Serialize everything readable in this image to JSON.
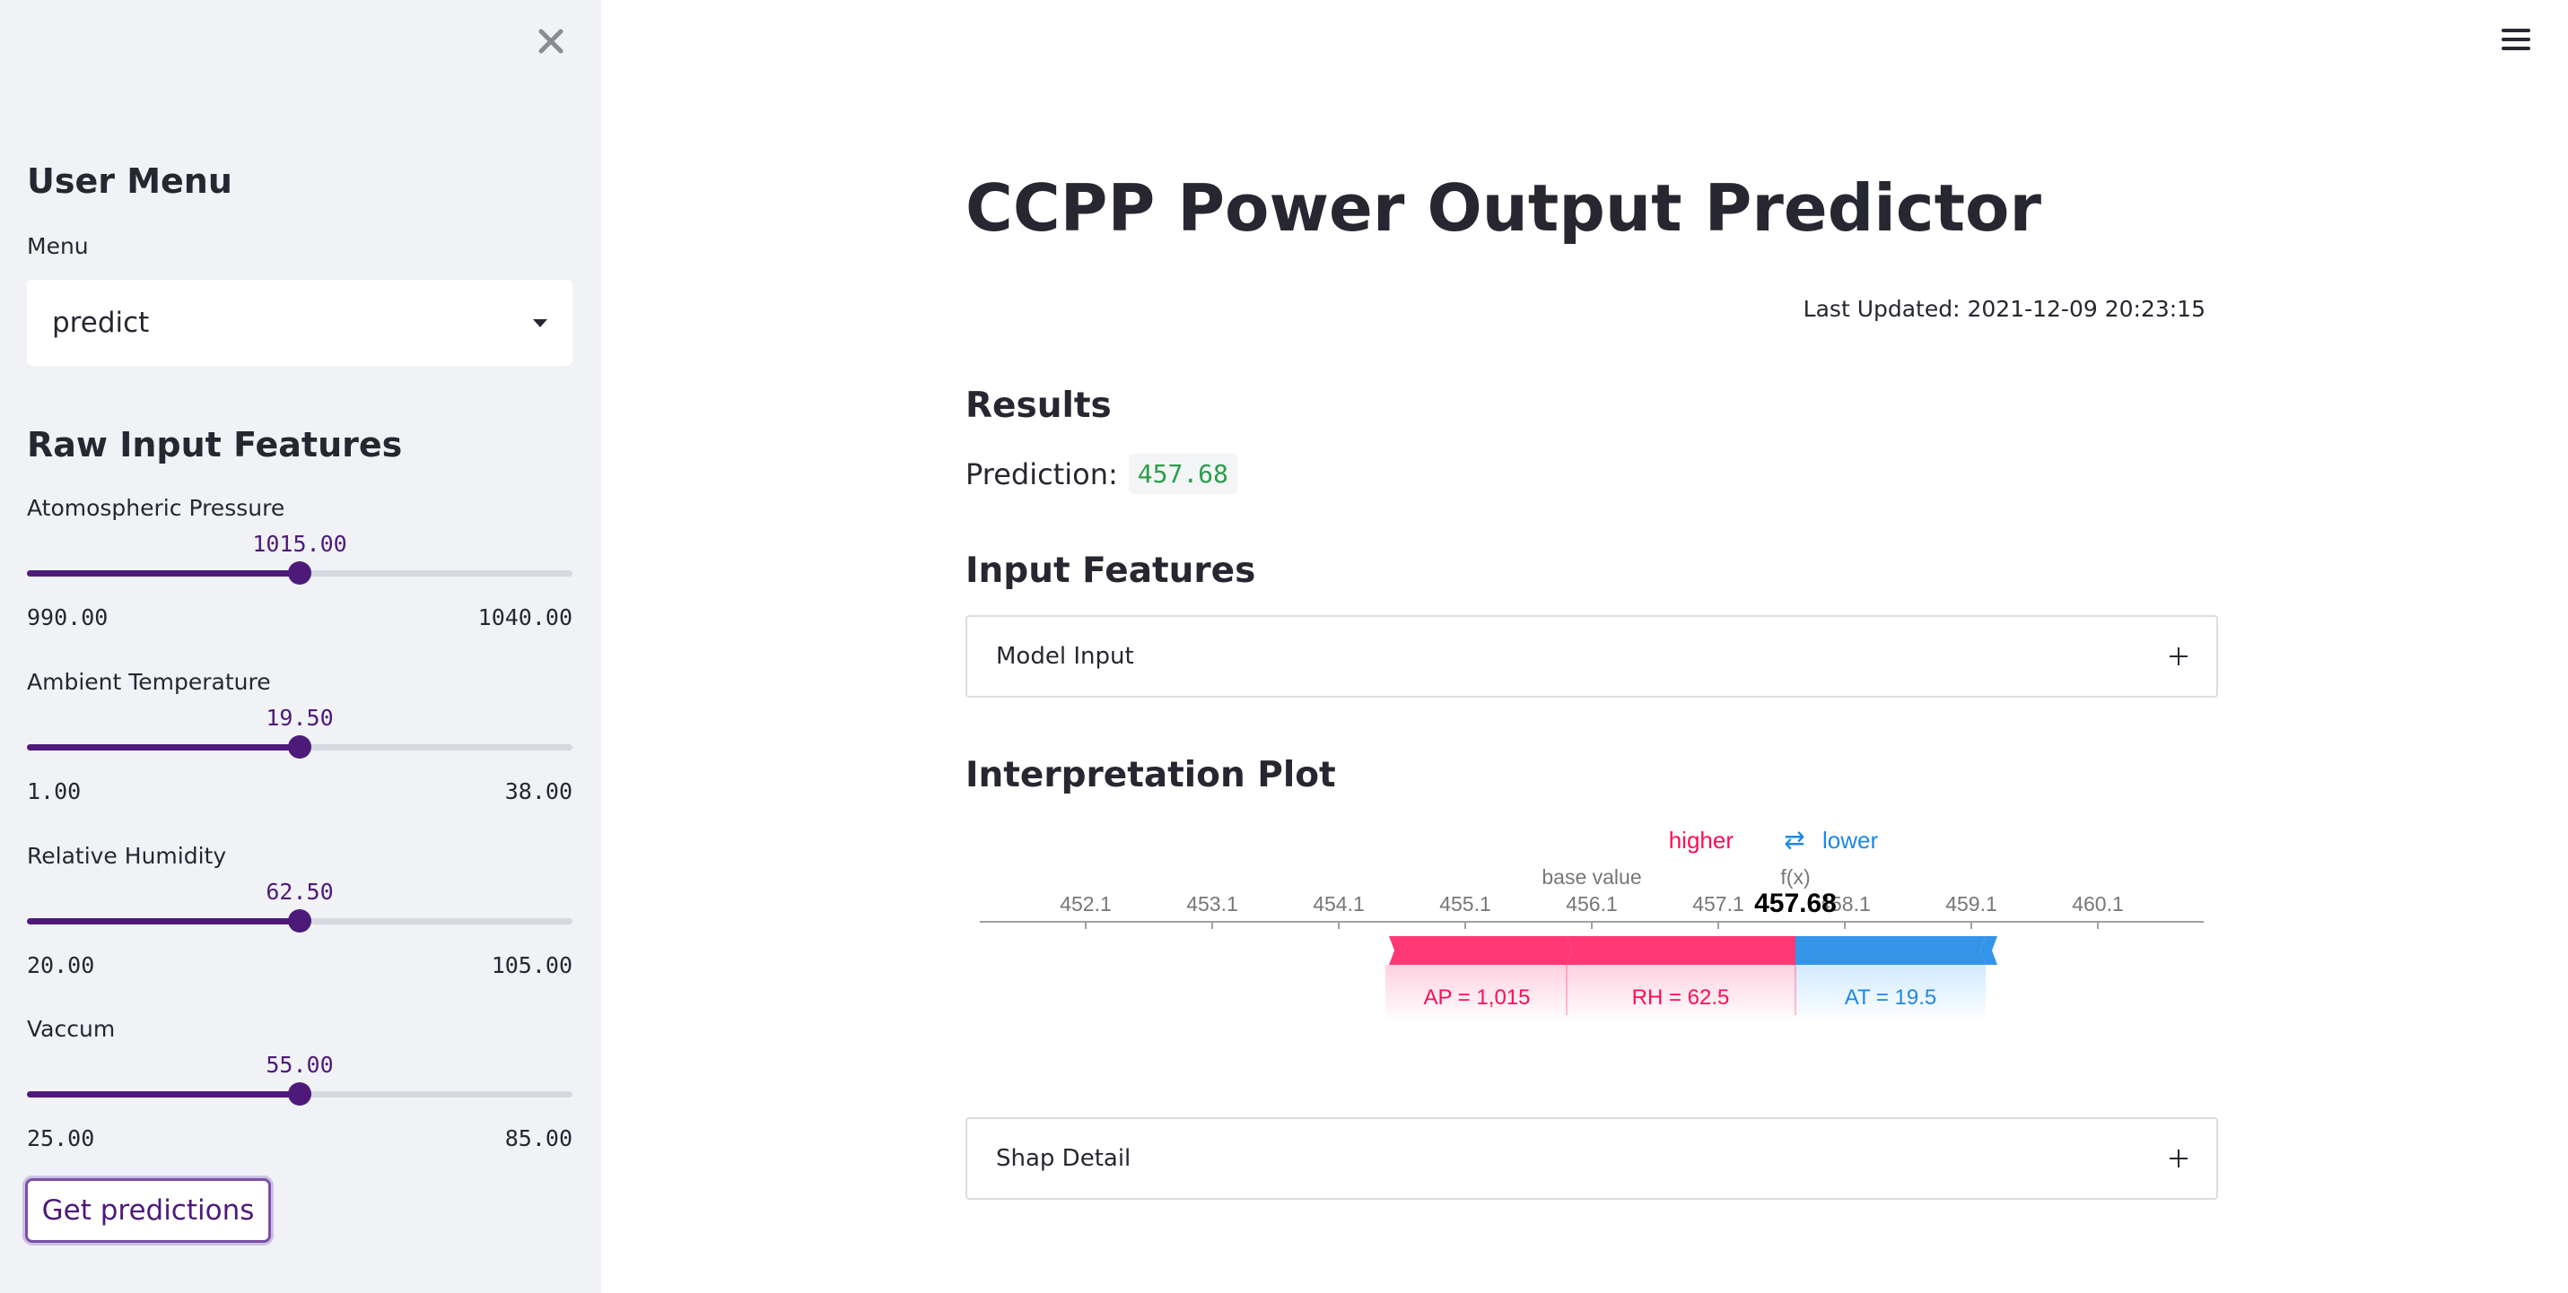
{
  "sidebar": {
    "title": "User Menu",
    "menu_label": "Menu",
    "menu_value": "predict",
    "features_title": "Raw Input Features",
    "sliders": [
      {
        "label": "Atomospheric Pressure",
        "value": "1015.00",
        "min": "990.00",
        "max": "1040.00",
        "fraction": 0.5
      },
      {
        "label": "Ambient Temperature",
        "value": "19.50",
        "min": "1.00",
        "max": "38.00",
        "fraction": 0.5
      },
      {
        "label": "Relative Humidity",
        "value": "62.50",
        "min": "20.00",
        "max": "105.00",
        "fraction": 0.5
      },
      {
        "label": "Vaccum",
        "value": "55.00",
        "min": "25.00",
        "max": "85.00",
        "fraction": 0.5
      }
    ],
    "button_label": "Get predictions"
  },
  "main": {
    "title": "CCPP Power Output Predictor",
    "last_updated": "Last Updated: 2021-12-09 20:23:15",
    "results_title": "Results",
    "prediction_label": "Prediction:",
    "prediction_value": "457.68",
    "input_features_title": "Input Features",
    "model_input_label": "Model Input",
    "interpretation_title": "Interpretation Plot",
    "shap_detail_label": "Shap Detail"
  },
  "plot": {
    "higher_label": "higher",
    "arrow_glyph": "⇄",
    "lower_label": "lower",
    "base_value_label": "base value",
    "fx_label": "f(x)",
    "fx_value": "457.68",
    "ticks": [
      "452.1",
      "453.1",
      "454.1",
      "455.1",
      "456.1",
      "457.1",
      "458.1",
      "459.1",
      "460.1"
    ],
    "features": [
      {
        "label": "AP = 1,015",
        "direction": "higher"
      },
      {
        "label": "RH = 62.5",
        "direction": "higher"
      },
      {
        "label": "AT = 19.5",
        "direction": "lower"
      }
    ]
  },
  "colors": {
    "accent": "#4e1a7a",
    "positive": "#ff0051",
    "negative": "#008bfb",
    "code_green": "#2c9d4a"
  }
}
